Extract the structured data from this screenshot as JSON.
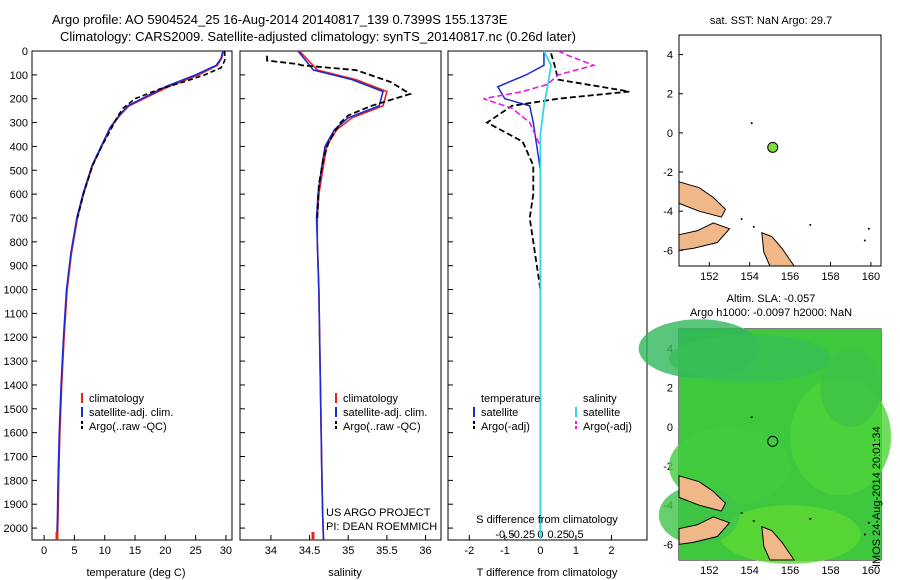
{
  "header": {
    "line1": "Argo profile: AO 5904524_25 16-Aug-2014 20140817_139 0.7399S 155.1373E",
    "line2": "Climatology: CARS2009. Satellite-adjusted climatology: synTS_20140817.nc (0.26d later)"
  },
  "colors": {
    "climatology": "#e8241c",
    "satellite": "#1b2bd6",
    "argo": "#000000",
    "sal_sat": "#33d6e6",
    "sal_argo": "#e81ce0",
    "land": "#f0b888",
    "marker": "#7ddc3a"
  },
  "chart_data": [
    {
      "id": "temperature",
      "type": "line",
      "xlabel": "temperature (deg C)",
      "ylabel": "",
      "xlim": [
        -2,
        31
      ],
      "ylim": [
        2050,
        0
      ],
      "xticks": [
        "0",
        "5",
        "10",
        "15",
        "20",
        "25",
        "30"
      ],
      "yticks": [
        "0",
        "100",
        "200",
        "300",
        "400",
        "500",
        "600",
        "700",
        "800",
        "900",
        "1000",
        "1100",
        "1200",
        "1300",
        "1400",
        "1500",
        "1600",
        "1700",
        "1800",
        "1900",
        "2000"
      ],
      "legend": [
        "climatology",
        "satellite-adj. clim.",
        "Argo(..raw -QC)"
      ],
      "series": [
        {
          "name": "climatology",
          "x": [
            29.6,
            29.3,
            28.6,
            25.5,
            20.5,
            14,
            12.5,
            11,
            9.5,
            8,
            6.5,
            5.5,
            4.5,
            3.8,
            3.3,
            2.9,
            2.6,
            2.4,
            2.3,
            2.2
          ],
          "y": [
            0,
            30,
            60,
            100,
            150,
            230,
            270,
            320,
            400,
            480,
            600,
            700,
            850,
            1000,
            1200,
            1400,
            1600,
            1800,
            1950,
            2050
          ]
        },
        {
          "name": "satellite-adj. clim.",
          "x": [
            29.5,
            29.2,
            28.4,
            25,
            20,
            13.8,
            12.4,
            10.9,
            9.4,
            7.9,
            6.4,
            5.4,
            4.4,
            3.7,
            3.2,
            2.8,
            2.5,
            2.3,
            2.2,
            2.1
          ],
          "y": [
            0,
            30,
            60,
            100,
            150,
            230,
            270,
            320,
            400,
            480,
            600,
            700,
            850,
            1000,
            1200,
            1400,
            1600,
            1800,
            1950,
            2050
          ]
        },
        {
          "name": "Argo(..raw -QC)",
          "x": [
            29.8,
            29.8,
            29.2,
            26.5,
            23,
            19,
            15,
            13,
            12,
            11,
            9.5,
            8,
            6.6,
            5.5
          ],
          "y": [
            0,
            40,
            70,
            100,
            130,
            160,
            200,
            240,
            280,
            330,
            400,
            480,
            590,
            700
          ]
        }
      ]
    },
    {
      "id": "salinity",
      "type": "line",
      "xlabel": "salinity",
      "ylabel": "",
      "xlim": [
        33.6,
        36.2
      ],
      "ylim": [
        2050,
        0
      ],
      "xticks": [
        "34",
        "34.5",
        "35",
        "35.5",
        "36"
      ],
      "legend": [
        "climatology",
        "satellite-adj. clim.",
        "Argo(..raw -QC)"
      ],
      "annotation": [
        "US ARGO PROJECT",
        "PI: DEAN ROEMMICH"
      ],
      "series": [
        {
          "name": "climatology",
          "x": [
            34.37,
            34.6,
            35.1,
            35.5,
            35.45,
            35.05,
            34.85,
            34.72,
            34.68,
            34.62,
            34.6,
            34.6,
            34.61,
            34.62,
            34.63,
            34.64,
            34.65,
            34.66,
            34.67,
            34.68
          ],
          "y": [
            0,
            80,
            120,
            170,
            230,
            280,
            330,
            400,
            480,
            600,
            700,
            800,
            900,
            1000,
            1200,
            1400,
            1600,
            1800,
            1950,
            2050
          ]
        },
        {
          "name": "satellite-adj. clim.",
          "x": [
            34.35,
            34.55,
            35.05,
            35.45,
            35.4,
            35.0,
            34.82,
            34.7,
            34.66,
            34.61,
            34.59,
            34.6,
            34.61,
            34.62,
            34.63,
            34.64,
            34.65,
            34.66,
            34.67,
            34.68
          ],
          "y": [
            0,
            80,
            120,
            170,
            230,
            280,
            330,
            400,
            480,
            600,
            700,
            800,
            900,
            1000,
            1200,
            1400,
            1600,
            1800,
            1950,
            2050
          ]
        },
        {
          "name": "Argo(..raw -QC)",
          "x": [
            33.95,
            33.95,
            34.35,
            34.4,
            35.1,
            35.55,
            35.8,
            35.3,
            35.0,
            34.9,
            34.75,
            34.68,
            34.62,
            34.6
          ],
          "y": [
            20,
            40,
            55,
            60,
            80,
            130,
            180,
            230,
            270,
            300,
            380,
            450,
            560,
            700
          ]
        }
      ]
    },
    {
      "id": "differences",
      "type": "line",
      "xlabel": "T difference from climatology",
      "xlabel2": "S difference from climatology",
      "xlim": [
        -2.6,
        3.0
      ],
      "ylim": [
        2050,
        0
      ],
      "xticks": [
        "-2",
        "-1",
        "0",
        "1",
        "2"
      ],
      "xticks2": [
        "-0.5",
        "-0.25",
        "0",
        "0.25",
        "0.5"
      ],
      "legend_headers": [
        "temperature",
        "salinity"
      ],
      "legend": [
        "satellite",
        "Argo(-adj)",
        "satellite",
        "Argo(-adj)"
      ],
      "series": [
        {
          "name": "satellite",
          "x": [
            0.1,
            0.1,
            -0.4,
            -1.2,
            -1.0,
            -0.3,
            -0.2,
            -0.1,
            0,
            0,
            0,
            0,
            0
          ],
          "y": [
            0,
            60,
            100,
            150,
            200,
            230,
            300,
            400,
            500,
            700,
            1000,
            1500,
            2050
          ]
        },
        {
          "name": "Argo(-adj)",
          "x": [
            0.3,
            0.4,
            0.5,
            2.5,
            0.5,
            -0.8,
            -1.5,
            -0.5,
            -0.2,
            -0.2,
            -0.3,
            -0.1,
            0
          ],
          "y": [
            10,
            60,
            120,
            170,
            200,
            230,
            300,
            380,
            480,
            600,
            700,
            900,
            1000
          ]
        },
        {
          "name": "satellite",
          "x": [
            0.1,
            0.3,
            0.2,
            0.1,
            0,
            0,
            0,
            0
          ],
          "y": [
            0,
            60,
            150,
            230,
            350,
            600,
            1200,
            2050
          ]
        },
        {
          "name": "Argo(-adj)",
          "x": [
            0.5,
            0.8,
            1.5,
            0.5,
            0.2,
            -0.5,
            -1.6,
            -0.8,
            -0.3,
            0
          ],
          "y": [
            0,
            20,
            60,
            100,
            140,
            170,
            200,
            240,
            300,
            400
          ]
        }
      ]
    },
    {
      "id": "sst-map",
      "type": "scatter",
      "title": "sat. SST: NaN Argo: 29.7",
      "xlim": [
        150.5,
        160.5
      ],
      "ylim": [
        -6.8,
        5
      ],
      "xticks": [
        "152",
        "154",
        "156",
        "158",
        "160"
      ],
      "yticks": [
        "4",
        "2",
        "0",
        "-2",
        "-4",
        "-6"
      ],
      "points": [
        {
          "x": 155.14,
          "y": -0.74
        }
      ]
    },
    {
      "id": "sla-map",
      "type": "heatmap",
      "title1": "Altim. SLA: -0.057",
      "title2": "Argo h1000: -0.0097 h2000: NaN",
      "xlim": [
        150.5,
        160.5
      ],
      "ylim": [
        -6.8,
        5
      ],
      "xticks": [
        "152",
        "154",
        "156",
        "158",
        "160"
      ],
      "yticks": [
        "4",
        "2",
        "0",
        "-2",
        "-4",
        "-6"
      ],
      "points": [
        {
          "x": 155.14,
          "y": -0.74
        }
      ]
    }
  ],
  "footer": {
    "stamp": "IMOS 24-Aug-2014 20:01:34"
  }
}
